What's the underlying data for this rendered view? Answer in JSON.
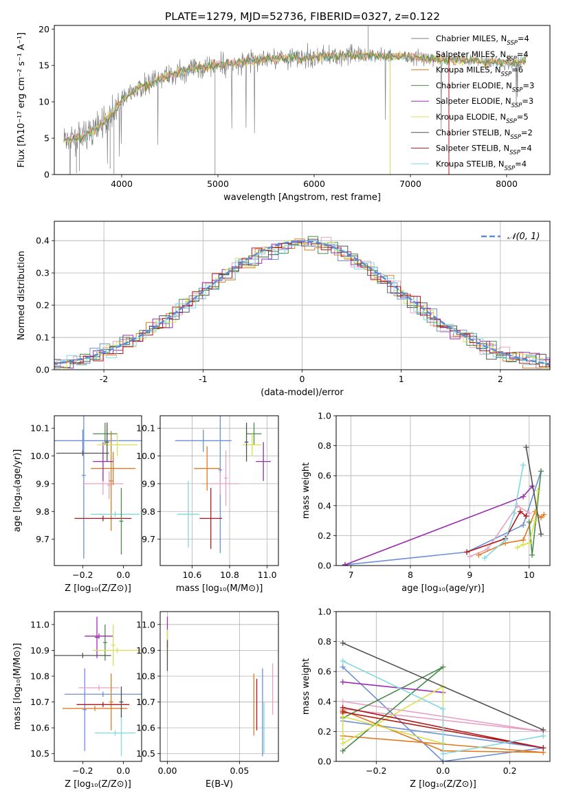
{
  "figure_title": "PLATE=1279, MJD=52736, FIBERID=0327, z=0.122",
  "colors": {
    "chabrier_miles": "#6b8fd6",
    "salpeter_miles": "#e8a0c4",
    "kroupa_miles": "#e07a22",
    "chabrier_elodie": "#4a8a4a",
    "salpeter_elodie": "#9a2ab0",
    "kroupa_elodie": "#d8e050",
    "chabrier_stelib": "#505050",
    "salpeter_stelib": "#b01818",
    "kroupa_stelib": "#80d8e0",
    "normal_curve": "#5b8bd6",
    "grid": "#b0b0b0",
    "data": "#808080"
  },
  "legend": [
    {
      "pre": "Chabrier MILES, N",
      "sub": "SSP",
      "post": "=4",
      "color": "#808080"
    },
    {
      "pre": "Salpeter MILES, N",
      "sub": "SSP",
      "post": "=4",
      "color": "#e8a0c4"
    },
    {
      "pre": "Kroupa MILES, N",
      "sub": "SSP",
      "post": "=6",
      "color": "#e07a22"
    },
    {
      "pre": "Chabrier ELODIE, N",
      "sub": "SSP",
      "post": "=3",
      "color": "#4a8a4a"
    },
    {
      "pre": "Salpeter ELODIE, N",
      "sub": "SSP",
      "post": "=3",
      "color": "#9a2ab0"
    },
    {
      "pre": "Kroupa ELODIE, N",
      "sub": "SSP",
      "post": "=5",
      "color": "#d8e050"
    },
    {
      "pre": "Chabrier STELIB, N",
      "sub": "SSP",
      "post": "=2",
      "color": "#505050"
    },
    {
      "pre": "Salpeter STELIB, N",
      "sub": "SSP",
      "post": "=4",
      "color": "#b01818"
    },
    {
      "pre": "Kroupa STELIB, N",
      "sub": "SSP",
      "post": "=4",
      "color": "#80d8e0"
    }
  ],
  "chart_data": [
    {
      "type": "line",
      "panel": "spectrum",
      "xlabel": "wavelength [Angstrom, rest frame]",
      "ylabel": "Flux [fλ10⁻¹⁷ erg cm⁻² s⁻¹ A⁻¹]",
      "xlim": [
        3300,
        8450
      ],
      "ylim": [
        0,
        20.5
      ],
      "xticks": [
        4000,
        5000,
        6000,
        7000,
        8000
      ],
      "yticks": [
        0,
        5,
        10,
        15,
        20
      ],
      "continuum": {
        "x": [
          3400,
          3500,
          3600,
          3700,
          3800,
          3900,
          4000,
          4100,
          4200,
          4300,
          4400,
          4500,
          4700,
          4900,
          5100,
          5300,
          5500,
          5700,
          5900,
          6100,
          6300,
          6500,
          6700,
          6900,
          7100,
          7300,
          7500,
          7700,
          7900,
          8100,
          8200
        ],
        "y": [
          4.8,
          4.9,
          5.3,
          6.0,
          7.0,
          8.3,
          10.2,
          11.2,
          12.0,
          12.5,
          13.2,
          13.8,
          14.4,
          14.9,
          15.2,
          15.5,
          15.8,
          16.1,
          16.0,
          16.2,
          16.4,
          16.4,
          16.3,
          16.3,
          16.0,
          15.9,
          15.8,
          15.6,
          15.4,
          15.4,
          15.6
        ]
      }
    },
    {
      "type": "bar",
      "panel": "residual-histogram",
      "xlabel": "(data-model)/error",
      "ylabel": "Normed distribution",
      "xlim": [
        -2.5,
        2.5
      ],
      "ylim": [
        0,
        0.46
      ],
      "xticks": [
        -2,
        -1,
        0,
        1,
        2
      ],
      "yticks": [
        0.0,
        0.1,
        0.2,
        0.3,
        0.4
      ],
      "legend": "𝒩(0, 1)"
    },
    {
      "type": "scatter",
      "panel": "age-vs-Z",
      "xlabel": "Z [log₁₀(Z/Z⊙)]",
      "ylabel": "age  [log₁₀(age/yr)]",
      "xlim": [
        -0.34,
        0.09
      ],
      "ylim": [
        9.605,
        10.145
      ],
      "xticks": [
        -0.2,
        0.0
      ],
      "yticks": [
        9.7,
        9.8,
        9.9,
        10.0,
        10.1
      ],
      "points": [
        {
          "x": -0.2,
          "y": 10.055,
          "xerr": 0.3,
          "yerr": 0.04,
          "c": "chabrier_miles"
        },
        {
          "x": -0.195,
          "y": 9.93,
          "xerr": 0.01,
          "yerr": 0.3,
          "c": "chabrier_miles"
        },
        {
          "x": -0.1,
          "y": 9.9,
          "xerr": 0.1,
          "yerr": 0.04,
          "c": "salpeter_miles"
        },
        {
          "x": -0.07,
          "y": 9.895,
          "xerr": 0.01,
          "yerr": 0.05,
          "c": "salpeter_miles"
        },
        {
          "x": -0.05,
          "y": 9.955,
          "xerr": 0.11,
          "yerr": 0.06,
          "c": "kroupa_miles"
        },
        {
          "x": -0.06,
          "y": 9.91,
          "xerr": 0.01,
          "yerr": 0.18,
          "c": "kroupa_miles"
        },
        {
          "x": -0.09,
          "y": 10.08,
          "xerr": 0.06,
          "yerr": 0.04,
          "c": "chabrier_elodie"
        },
        {
          "x": -0.1,
          "y": 9.98,
          "xerr": 0.05,
          "yerr": 0.07,
          "c": "salpeter_elodie"
        },
        {
          "x": -0.03,
          "y": 10.04,
          "xerr": 0.1,
          "yerr": 0.04,
          "c": "kroupa_elodie"
        },
        {
          "x": -0.2,
          "y": 10.01,
          "xerr": 0.13,
          "yerr": 0.01,
          "c": "chabrier_stelib"
        },
        {
          "x": -0.08,
          "y": 10.05,
          "xerr": 0.01,
          "yerr": 0.07,
          "c": "chabrier_stelib"
        },
        {
          "x": -0.1,
          "y": 9.775,
          "xerr": 0.14,
          "yerr": 0.01,
          "c": "salpeter_stelib"
        },
        {
          "x": -0.04,
          "y": 9.79,
          "xerr": 0.12,
          "yerr": 0.01,
          "c": "kroupa_stelib"
        },
        {
          "x": -0.01,
          "y": 9.765,
          "xerr": 0.01,
          "yerr": 0.12,
          "c": "chabrier_elodie"
        }
      ]
    },
    {
      "type": "scatter",
      "panel": "age-vs-mass",
      "xlabel": "mass [log₁₀(M/M⊙)]",
      "ylabel": "",
      "xlim": [
        10.43,
        11.06
      ],
      "ylim": [
        9.605,
        10.145
      ],
      "xticks": [
        10.6,
        10.8,
        11.0
      ],
      "yticks": [
        9.7,
        9.8,
        9.9,
        10.0,
        10.1
      ],
      "points": [
        {
          "x": 10.66,
          "y": 10.055,
          "xerr": 0.15,
          "yerr": 0.04,
          "c": "chabrier_miles"
        },
        {
          "x": 10.75,
          "y": 9.95,
          "xerr": 0.01,
          "yerr": 0.3,
          "c": "chabrier_miles"
        },
        {
          "x": 10.75,
          "y": 9.9,
          "xerr": 0.1,
          "yerr": 0.04,
          "c": "salpeter_miles"
        },
        {
          "x": 10.78,
          "y": 9.92,
          "xerr": 0.01,
          "yerr": 0.1,
          "c": "salpeter_miles"
        },
        {
          "x": 10.68,
          "y": 9.955,
          "xerr": 0.07,
          "yerr": 0.08,
          "c": "kroupa_miles"
        },
        {
          "x": 10.93,
          "y": 10.08,
          "xerr": 0.04,
          "yerr": 0.04,
          "c": "chabrier_elodie"
        },
        {
          "x": 10.98,
          "y": 9.98,
          "xerr": 0.04,
          "yerr": 0.07,
          "c": "salpeter_elodie"
        },
        {
          "x": 10.92,
          "y": 10.04,
          "xerr": 0.05,
          "yerr": 0.04,
          "c": "kroupa_elodie"
        },
        {
          "x": 10.89,
          "y": 10.05,
          "xerr": 0.01,
          "yerr": 0.07,
          "c": "chabrier_stelib"
        },
        {
          "x": 10.7,
          "y": 9.775,
          "xerr": 0.06,
          "yerr": 0.11,
          "c": "salpeter_stelib"
        },
        {
          "x": 10.58,
          "y": 9.79,
          "xerr": 0.06,
          "yerr": 0.12,
          "c": "kroupa_stelib"
        }
      ]
    },
    {
      "type": "line",
      "panel": "mass-weight-vs-age",
      "xlabel": "age  [log₁₀(age/yr)]",
      "ylabel": "mass weight",
      "xlim": [
        6.75,
        10.35
      ],
      "ylim": [
        0,
        1.0
      ],
      "xticks": [
        7,
        8,
        9,
        10
      ],
      "yticks": [
        0.0,
        0.2,
        0.4,
        0.6,
        0.8,
        1.0
      ],
      "series": [
        {
          "c": "chabrier_miles",
          "x": [
            6.9,
            8.95,
            9.9,
            10.2
          ],
          "y": [
            0.005,
            0.09,
            0.27,
            0.63
          ]
        },
        {
          "c": "salpeter_miles",
          "x": [
            9.0,
            9.3,
            9.8,
            10.0
          ],
          "y": [
            0.06,
            0.11,
            0.4,
            0.35
          ]
        },
        {
          "c": "kroupa_miles",
          "x": [
            9.15,
            9.6,
            9.9,
            10.1,
            10.2,
            10.25
          ],
          "y": [
            0.07,
            0.15,
            0.17,
            0.36,
            0.32,
            0.34
          ]
        },
        {
          "c": "chabrier_elodie",
          "x": [
            10.0,
            10.05,
            10.2
          ],
          "y": [
            0.29,
            0.07,
            0.63
          ]
        },
        {
          "c": "salpeter_elodie",
          "x": [
            6.9,
            9.9,
            10.05
          ],
          "y": [
            0.005,
            0.46,
            0.53
          ]
        },
        {
          "c": "kroupa_elodie",
          "x": [
            9.8,
            9.9,
            10.0,
            10.1,
            10.15
          ],
          "y": [
            0.12,
            0.14,
            0.15,
            0.3,
            0.5
          ]
        },
        {
          "c": "chabrier_stelib",
          "x": [
            9.95,
            10.2
          ],
          "y": [
            0.79,
            0.21
          ]
        },
        {
          "c": "salpeter_stelib",
          "x": [
            8.95,
            9.6,
            9.85,
            9.95
          ],
          "y": [
            0.09,
            0.18,
            0.36,
            0.33
          ]
        },
        {
          "c": "kroupa_stelib",
          "x": [
            9.25,
            9.6,
            9.75,
            9.9
          ],
          "y": [
            0.05,
            0.17,
            0.35,
            0.67
          ]
        }
      ]
    },
    {
      "type": "scatter",
      "panel": "mass-vs-Z",
      "xlabel": "Z [log₁₀(Z/Z⊙)]",
      "ylabel": "mass [log₁₀(M/M⊙)]",
      "xlim": [
        -0.34,
        0.09
      ],
      "ylim": [
        10.47,
        11.05
      ],
      "xticks": [
        -0.2,
        0.0
      ],
      "yticks": [
        10.5,
        10.6,
        10.7,
        10.8,
        10.9,
        11.0
      ],
      "points": [
        {
          "x": -0.1,
          "y": 10.73,
          "xerr": 0.19,
          "yerr": 0.01,
          "c": "chabrier_miles"
        },
        {
          "x": -0.19,
          "y": 10.67,
          "xerr": 0.01,
          "yerr": 0.16,
          "c": "chabrier_miles"
        },
        {
          "x": -0.12,
          "y": 10.755,
          "xerr": 0.1,
          "yerr": 0.01,
          "c": "salpeter_miles"
        },
        {
          "x": -0.14,
          "y": 10.675,
          "xerr": 0.16,
          "yerr": 0.01,
          "c": "kroupa_miles"
        },
        {
          "x": -0.06,
          "y": 10.7,
          "xerr": 0.01,
          "yerr": 0.11,
          "c": "kroupa_miles"
        },
        {
          "x": -0.09,
          "y": 10.93,
          "xerr": 0.01,
          "yerr": 0.07,
          "c": "chabrier_elodie"
        },
        {
          "x": -0.12,
          "y": 10.955,
          "xerr": 0.07,
          "yerr": 0.01,
          "c": "salpeter_elodie"
        },
        {
          "x": -0.13,
          "y": 10.95,
          "xerr": 0.01,
          "yerr": 0.08,
          "c": "salpeter_elodie"
        },
        {
          "x": -0.03,
          "y": 10.9,
          "xerr": 0.12,
          "yerr": 0.01,
          "c": "kroupa_elodie"
        },
        {
          "x": -0.05,
          "y": 10.92,
          "xerr": 0.01,
          "yerr": 0.08,
          "c": "kroupa_elodie"
        },
        {
          "x": -0.2,
          "y": 10.88,
          "xerr": 0.14,
          "yerr": 0.01,
          "c": "chabrier_stelib"
        },
        {
          "x": -0.1,
          "y": 10.69,
          "xerr": 0.13,
          "yerr": 0.01,
          "c": "salpeter_stelib"
        },
        {
          "x": -0.04,
          "y": 10.58,
          "xerr": 0.1,
          "yerr": 0.01,
          "c": "kroupa_stelib"
        },
        {
          "x": -0.01,
          "y": 10.58,
          "xerr": 0.01,
          "yerr": 0.09,
          "c": "kroupa_stelib"
        },
        {
          "x": -0.01,
          "y": 10.7,
          "xerr": 0.01,
          "yerr": 0.06,
          "c": "chabrier_stelib"
        }
      ]
    },
    {
      "type": "scatter",
      "panel": "mass-vs-EBV",
      "xlabel": "E(B-V)",
      "ylabel": "",
      "xlim": [
        -0.005,
        0.077
      ],
      "ylim": [
        10.47,
        11.05
      ],
      "xticks": [
        0.0,
        0.05
      ],
      "xtick_labels": [
        "0.00",
        "0.05"
      ],
      "yticks": [
        10.5,
        10.6,
        10.7,
        10.8,
        10.9,
        11.0
      ],
      "points": [
        {
          "x": 0.0,
          "y": 10.97,
          "xerr": 0,
          "yerr": 0.06,
          "c": "salpeter_elodie"
        },
        {
          "x": 0.0,
          "y": 10.93,
          "xerr": 0,
          "yerr": 0.05,
          "c": "kroupa_elodie"
        },
        {
          "x": 0.0,
          "y": 10.88,
          "xerr": 0,
          "yerr": 0.06,
          "c": "chabrier_stelib"
        },
        {
          "x": 0.06,
          "y": 10.69,
          "xerr": 0,
          "yerr": 0.12,
          "c": "kroupa_miles"
        },
        {
          "x": 0.062,
          "y": 10.69,
          "xerr": 0,
          "yerr": 0.1,
          "c": "salpeter_stelib"
        },
        {
          "x": 0.066,
          "y": 10.66,
          "xerr": 0,
          "yerr": 0.17,
          "c": "chabrier_miles"
        },
        {
          "x": 0.067,
          "y": 10.6,
          "xerr": 0,
          "yerr": 0.1,
          "c": "kroupa_stelib"
        },
        {
          "x": 0.073,
          "y": 10.75,
          "xerr": 0,
          "yerr": 0.1,
          "c": "salpeter_miles"
        }
      ]
    },
    {
      "type": "line",
      "panel": "mass-weight-vs-Z",
      "xlabel": "Z [log₁₀(Z/Z⊙)]",
      "ylabel": "mass weight",
      "xlim": [
        -0.32,
        0.32
      ],
      "ylim": [
        0,
        1.0
      ],
      "xticks": [
        -0.2,
        0.0,
        0.2
      ],
      "yticks": [
        0.0,
        0.2,
        0.4,
        0.6,
        0.8,
        1.0
      ],
      "series": [
        {
          "c": "chabrier_miles",
          "x": [
            -0.3,
            0.0,
            0.3,
            -0.3
          ],
          "y": [
            0.63,
            0.0,
            0.09,
            0.27
          ]
        },
        {
          "c": "salpeter_miles",
          "x": [
            -0.3,
            0.3,
            -0.3
          ],
          "y": [
            0.35,
            0.2,
            0.4
          ]
        },
        {
          "c": "kroupa_miles",
          "x": [
            -0.3,
            0.0,
            0.3,
            -0.3,
            -0.3
          ],
          "y": [
            0.34,
            0.07,
            0.06,
            0.17,
            0.32
          ]
        },
        {
          "c": "chabrier_elodie",
          "x": [
            -0.3,
            0.0,
            -0.3
          ],
          "y": [
            0.07,
            0.63,
            0.29
          ]
        },
        {
          "c": "salpeter_elodie",
          "x": [
            -0.3,
            0.0
          ],
          "y": [
            0.53,
            0.46
          ]
        },
        {
          "c": "kroupa_elodie",
          "x": [
            -0.3,
            0.0,
            0.0,
            -0.3,
            -0.3
          ],
          "y": [
            0.12,
            0.5,
            0.12,
            0.3,
            0.15
          ]
        },
        {
          "c": "chabrier_stelib",
          "x": [
            -0.3,
            0.3
          ],
          "y": [
            0.79,
            0.21
          ]
        },
        {
          "c": "salpeter_stelib",
          "x": [
            -0.3,
            0.3,
            -0.3
          ],
          "y": [
            0.33,
            0.09,
            0.36
          ]
        },
        {
          "c": "kroupa_stelib",
          "x": [
            -0.3,
            0.0,
            0.0,
            0.3
          ],
          "y": [
            0.67,
            0.35,
            0.05,
            0.17
          ]
        }
      ]
    }
  ]
}
